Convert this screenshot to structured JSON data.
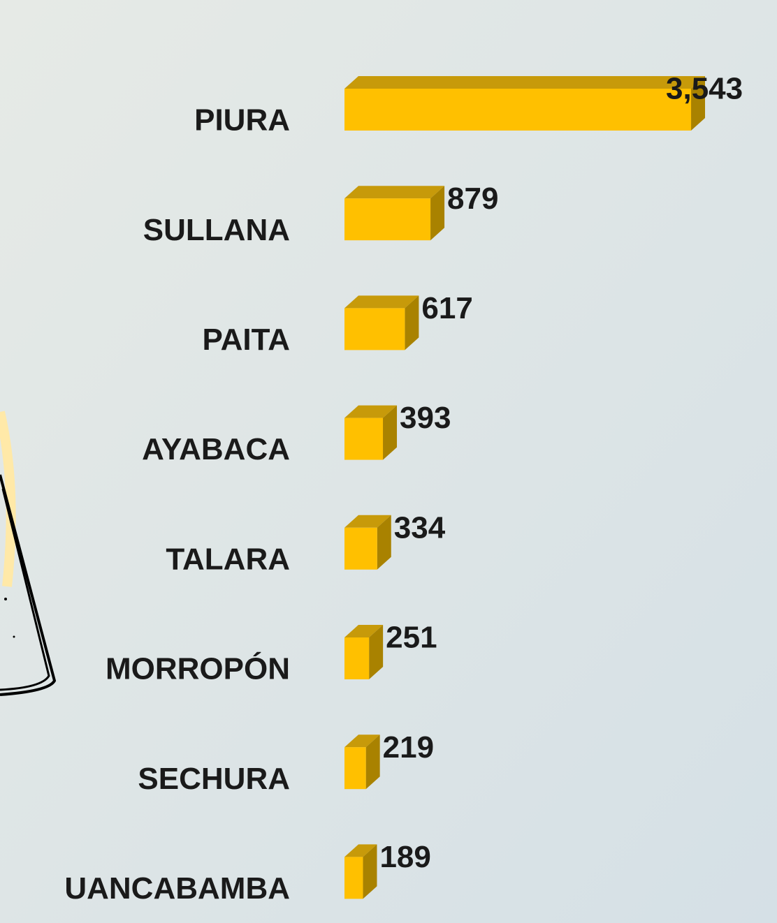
{
  "chart_data": {
    "type": "bar3d-horizontal",
    "categories": [
      "PIURA",
      "SULLANA",
      "PAITA",
      "AYABACA",
      "TALARA",
      "MORROPÓN",
      "SECHURA",
      "UANCABAMBA"
    ],
    "values": [
      3543,
      879,
      617,
      393,
      334,
      251,
      219,
      189
    ],
    "value_labels": [
      "3,543",
      "879",
      "617",
      "393",
      "334",
      "251",
      "219",
      "189"
    ],
    "color": "#ffc000"
  }
}
